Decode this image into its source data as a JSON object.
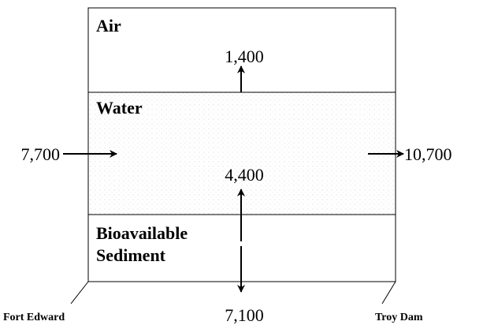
{
  "compartments": [
    {
      "lines": [
        "Air"
      ]
    },
    {
      "lines": [
        "Water"
      ]
    },
    {
      "lines": [
        "Bioavailable",
        "Sediment"
      ]
    }
  ],
  "flows": [
    {
      "label": "1,400"
    },
    {
      "label": "7,700"
    },
    {
      "label": "10,700"
    },
    {
      "label": "4,400"
    },
    {
      "label": "7,100"
    }
  ],
  "locations": {
    "upstream": "Fort Edward",
    "downstream": "Troy Dam"
  }
}
